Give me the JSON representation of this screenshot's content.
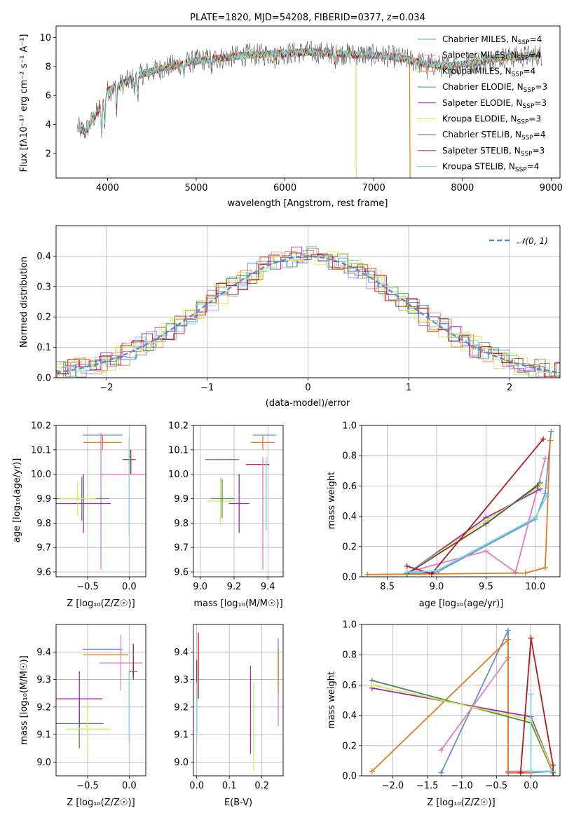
{
  "chart_data": [
    {
      "id": "p1",
      "type": "line",
      "title": "PLATE=1820, MJD=54208, FIBERID=0377, z=0.034",
      "xlabel": "wavelength [Angstrom, rest frame]",
      "ylabel": "Flux [fλ10⁻¹⁷ erg cm⁻² s⁻¹ A⁻¹]",
      "xlim": [
        3420,
        9100
      ],
      "ylim": [
        0.3,
        10.8
      ],
      "xticks": [
        4000,
        5000,
        6000,
        7000,
        8000,
        9000
      ],
      "yticks": [
        2,
        4,
        6,
        8,
        10
      ],
      "grid": false,
      "legend_position": "top-right",
      "series": [
        {
          "name": "Chabrier MILES, N_SSP=4",
          "color": "#6a8ad8"
        },
        {
          "name": "Salpeter MILES, N_SSP=4",
          "color": "#e27cc0"
        },
        {
          "name": "Kroupa MILES, N_SSP=4",
          "color": "#e07d1e"
        },
        {
          "name": "Chabrier ELODIE, N_SSP=3",
          "color": "#4a8a5a"
        },
        {
          "name": "Salpeter ELODIE, N_SSP=3",
          "color": "#9a2aa8"
        },
        {
          "name": "Kroupa ELODIE, N_SSP=3",
          "color": "#d7e85a"
        },
        {
          "name": "Chabrier STELIB, N_SSP=4",
          "color": "#555555"
        },
        {
          "name": "Salpeter STELIB, N_SSP=3",
          "color": "#b01a1a"
        },
        {
          "name": "Kroupa STELIB, N_SSP=4",
          "color": "#72d8d8"
        }
      ],
      "spectrum_envelope": {
        "x": [
          3650,
          3750,
          3900,
          4000,
          4200,
          4400,
          4700,
          5000,
          5300,
          5600,
          6000,
          6300,
          6600,
          6900,
          7200,
          7500,
          7800,
          8100,
          8400,
          8700,
          8900
        ],
        "y": [
          3.8,
          3.5,
          5.0,
          6.3,
          6.9,
          7.5,
          8.0,
          8.4,
          8.6,
          8.8,
          8.9,
          9.0,
          8.9,
          8.8,
          8.7,
          8.3,
          8.0,
          8.2,
          8.6,
          8.7,
          8.8
        ]
      }
    },
    {
      "id": "p2",
      "type": "histogram",
      "xlabel": "(data-model)/error",
      "ylabel": "Normed distribution",
      "xlim": [
        -2.5,
        2.5
      ],
      "ylim": [
        0,
        0.5
      ],
      "xticks": [
        -2,
        -1,
        0,
        1,
        2
      ],
      "yticks": [
        0.0,
        0.1,
        0.2,
        0.3,
        0.4
      ],
      "grid": true,
      "legend": [
        {
          "name": "𝒩(0, 1)",
          "style": "dashed",
          "color": "#5b8ad8"
        }
      ],
      "legend_position": "top-right"
    },
    {
      "id": "p3",
      "type": "errorbar",
      "xlabel": "Z [log₁₀(Z/Z☉)]",
      "ylabel": "age  [log₁₀(age/yr)]",
      "xlim": [
        -0.88,
        0.2
      ],
      "ylim": [
        9.58,
        10.2
      ],
      "xticks": [
        -0.5,
        0.0
      ],
      "yticks": [
        9.6,
        9.7,
        9.8,
        9.9,
        10.0,
        10.1,
        10.2
      ],
      "points": [
        {
          "color": "#6a8ad8",
          "x": -0.32,
          "xerr": 0.24,
          "y": 10.16,
          "yerr": 0.0
        },
        {
          "color": "#e07d1e",
          "x": -0.32,
          "xerr": 0.23,
          "y": 10.13,
          "yerr": 0.03
        },
        {
          "color": "#e27cc0",
          "x": -0.34,
          "xerr": 0.0,
          "y": 9.89,
          "yerr": 0.28
        },
        {
          "color": "#4a8a5a",
          "x": -0.57,
          "xerr": 0.33,
          "y": 9.9,
          "yerr": 0.09
        },
        {
          "color": "#9a2aa8",
          "x": -0.55,
          "xerr": 0.33,
          "y": 9.88,
          "yerr": 0.12
        },
        {
          "color": "#d7e85a",
          "x": -0.62,
          "xerr": 0.22,
          "y": 9.9,
          "yerr": 0.07
        },
        {
          "color": "#e27cc0",
          "x": 0.0,
          "xerr": 0.35,
          "y": 10.0,
          "yerr": 0.0
        },
        {
          "color": "#b01a1a",
          "x": 0.02,
          "xerr": 0.0,
          "y": 10.05,
          "yerr": 0.05
        },
        {
          "color": "#555555",
          "x": 0.0,
          "xerr": 0.08,
          "y": 10.06,
          "yerr": 0.02
        },
        {
          "color": "#72d8d8",
          "x": 0.0,
          "xerr": 0.0,
          "y": 9.95,
          "yerr": 0.2
        }
      ]
    },
    {
      "id": "p4",
      "type": "errorbar",
      "xlabel": "mass [log₁₀(M/M☉)]",
      "ylabel": "",
      "xlim": [
        8.96,
        9.49
      ],
      "ylim": [
        9.58,
        10.2
      ],
      "xticks": [
        9.0,
        9.2,
        9.4
      ],
      "yticks": [
        9.6,
        9.7,
        9.8,
        9.9,
        10.0,
        10.1,
        10.2
      ],
      "points": [
        {
          "color": "#6a8ad8",
          "x": 9.38,
          "xerr": 0.07,
          "y": 10.16,
          "yerr": 0.0
        },
        {
          "color": "#e07d1e",
          "x": 9.37,
          "xerr": 0.07,
          "y": 10.13,
          "yerr": 0.03
        },
        {
          "color": "#4a8a5a",
          "x": 9.13,
          "xerr": 0.1,
          "y": 10.06,
          "yerr": 0.0
        },
        {
          "color": "#b01a1a",
          "x": 9.34,
          "xerr": 0.07,
          "y": 10.04,
          "yerr": 0.0
        },
        {
          "color": "#e27cc0",
          "x": 9.37,
          "xerr": 0.0,
          "y": 9.84,
          "yerr": 0.23
        },
        {
          "color": "#9a2aa8",
          "x": 9.23,
          "xerr": 0.06,
          "y": 9.88,
          "yerr": 0.12
        },
        {
          "color": "#d7e85a",
          "x": 9.12,
          "xerr": 0.08,
          "y": 9.89,
          "yerr": 0.1
        },
        {
          "color": "#4a8a5a",
          "x": 9.13,
          "xerr": 0.07,
          "y": 9.9,
          "yerr": 0.08
        },
        {
          "color": "#72d8d8",
          "x": 9.39,
          "xerr": 0.0,
          "y": 9.92,
          "yerr": 0.15
        }
      ]
    },
    {
      "id": "p5",
      "type": "line",
      "xlabel": "age  [log₁₀(age/yr)]",
      "ylabel": "mass weight",
      "xlim": [
        8.24,
        10.25
      ],
      "ylim": [
        0,
        1
      ],
      "xticks": [
        8.5,
        9.0,
        9.5,
        10.0
      ],
      "yticks": [
        0.0,
        0.2,
        0.4,
        0.6,
        0.8,
        1.0
      ],
      "grid": true,
      "series": [
        {
          "color": "#6a8ad8",
          "x": [
            8.7,
            9.0,
            10.0,
            10.1,
            10.16
          ],
          "y": [
            0.02,
            0.03,
            0.38,
            0.55,
            0.96
          ]
        },
        {
          "color": "#e27cc0",
          "x": [
            8.7,
            9.5,
            9.8,
            10.1
          ],
          "y": [
            0.03,
            0.17,
            0.03,
            0.78
          ]
        },
        {
          "color": "#e07d1e",
          "x": [
            8.3,
            9.9,
            10.1,
            10.15
          ],
          "y": [
            0.015,
            0.025,
            0.06,
            0.9
          ]
        },
        {
          "color": "#4a8a5a",
          "x": [
            8.7,
            9.5,
            10.05
          ],
          "y": [
            0.02,
            0.35,
            0.62
          ]
        },
        {
          "color": "#9a2aa8",
          "x": [
            8.7,
            9.5,
            10.05
          ],
          "y": [
            0.02,
            0.39,
            0.58
          ]
        },
        {
          "color": "#d7e85a",
          "x": [
            8.7,
            9.5,
            10.05
          ],
          "y": [
            0.02,
            0.37,
            0.6
          ]
        },
        {
          "color": "#555555",
          "x": [
            8.7,
            9.5,
            10.02
          ],
          "y": [
            0.02,
            0.35,
            0.6
          ]
        },
        {
          "color": "#b01a1a",
          "x": [
            8.7,
            8.95,
            10.08
          ],
          "y": [
            0.07,
            0.02,
            0.91
          ]
        },
        {
          "color": "#72d8d8",
          "x": [
            8.7,
            9.0,
            10.0,
            10.12
          ],
          "y": [
            0.03,
            0.04,
            0.39,
            0.54
          ]
        }
      ]
    },
    {
      "id": "p6",
      "type": "errorbar",
      "xlabel": "Z [log₁₀(Z/Z☉)]",
      "ylabel": "mass [log₁₀(M/M☉)]",
      "xlim": [
        -0.88,
        0.2
      ],
      "ylim": [
        8.95,
        9.5
      ],
      "xticks": [
        -0.5,
        0.0
      ],
      "yticks": [
        9.0,
        9.1,
        9.2,
        9.3,
        9.4
      ],
      "points": [
        {
          "color": "#6a8ad8",
          "x": -0.32,
          "xerr": 0.24,
          "y": 9.41,
          "yerr": 0.0
        },
        {
          "color": "#e07d1e",
          "x": -0.28,
          "xerr": 0.27,
          "y": 9.39,
          "yerr": 0.0
        },
        {
          "color": "#e27cc0",
          "x": -0.1,
          "xerr": 0.26,
          "y": 9.36,
          "yerr": 0.1
        },
        {
          "color": "#4a8a5a",
          "x": -0.6,
          "xerr": 0.29,
          "y": 9.14,
          "yerr": 0.09
        },
        {
          "color": "#9a2aa8",
          "x": -0.6,
          "xerr": 0.28,
          "y": 9.23,
          "yerr": 0.1
        },
        {
          "color": "#d7e85a",
          "x": -0.5,
          "xerr": 0.27,
          "y": 9.12,
          "yerr": 0.09
        },
        {
          "color": "#555555",
          "x": 0.05,
          "xerr": 0.05,
          "y": 9.33,
          "yerr": 0.03
        },
        {
          "color": "#b01a1a",
          "x": 0.05,
          "xerr": 0.0,
          "y": 9.37,
          "yerr": 0.06
        },
        {
          "color": "#72d8d8",
          "x": 0.0,
          "xerr": 0.0,
          "y": 9.2,
          "yerr": 0.13
        }
      ]
    },
    {
      "id": "p7",
      "type": "errorbar",
      "xlabel": "E(B-V)",
      "ylabel": "",
      "xlim": [
        -0.01,
        0.265
      ],
      "ylim": [
        8.95,
        9.5
      ],
      "xticks": [
        0.0,
        0.1,
        0.2
      ],
      "yticks": [
        9.0,
        9.1,
        9.2,
        9.3,
        9.4
      ],
      "points": [
        {
          "color": "#555555",
          "x": 0.0,
          "xerr": 0.0,
          "y": 9.24,
          "yerr": 0.13
        },
        {
          "color": "#b01a1a",
          "x": 0.005,
          "xerr": 0.0,
          "y": 9.35,
          "yerr": 0.12
        },
        {
          "color": "#72d8d8",
          "x": 0.0,
          "xerr": 0.0,
          "y": 9.18,
          "yerr": 0.11
        },
        {
          "color": "#9a2aa8",
          "x": 0.165,
          "xerr": 0.0,
          "y": 9.19,
          "yerr": 0.16
        },
        {
          "color": "#d7e85a",
          "x": 0.175,
          "xerr": 0.0,
          "y": 9.13,
          "yerr": 0.16
        },
        {
          "color": "#e27cc0",
          "x": 0.25,
          "xerr": 0.0,
          "y": 9.27,
          "yerr": 0.14
        },
        {
          "color": "#6a8ad8",
          "x": 0.25,
          "xerr": 0.0,
          "y": 9.38,
          "yerr": 0.07
        },
        {
          "color": "#e07d1e",
          "x": 0.25,
          "xerr": 0.0,
          "y": 9.33,
          "yerr": 0.08
        }
      ]
    },
    {
      "id": "p8",
      "type": "line",
      "xlabel": "Z [log₁₀(Z/Z☉)]",
      "ylabel": "mass weight",
      "xlim": [
        -2.45,
        0.42
      ],
      "ylim": [
        0,
        1
      ],
      "xticks": [
        -2.0,
        -1.5,
        -1.0,
        -0.5,
        0.0
      ],
      "yticks": [
        0.0,
        0.2,
        0.4,
        0.6,
        0.8,
        1.0
      ],
      "grid": true,
      "series": [
        {
          "color": "#6a8ad8",
          "x": [
            -1.3,
            -0.33,
            -0.33,
            0.0,
            0.32
          ],
          "y": [
            0.02,
            0.96,
            0.02,
            0.02,
            0.03
          ]
        },
        {
          "color": "#e27cc0",
          "x": [
            -1.3,
            -0.33,
            -0.33,
            0.0
          ],
          "y": [
            0.17,
            0.78,
            0.03,
            0.03
          ]
        },
        {
          "color": "#e07d1e",
          "x": [
            -2.3,
            -0.33,
            -0.33,
            0.0
          ],
          "y": [
            0.03,
            0.9,
            0.02,
            0.02
          ]
        },
        {
          "color": "#4a8a5a",
          "x": [
            -2.3,
            0.0,
            0.32
          ],
          "y": [
            0.63,
            0.35,
            0.02
          ]
        },
        {
          "color": "#9a2aa8",
          "x": [
            -2.3,
            0.0,
            0.32
          ],
          "y": [
            0.58,
            0.39,
            0.03
          ]
        },
        {
          "color": "#d7e85a",
          "x": [
            -2.3,
            0.0,
            0.32
          ],
          "y": [
            0.6,
            0.37,
            0.03
          ]
        },
        {
          "color": "#b01a1a",
          "x": [
            -0.15,
            0.0,
            0.32,
            0.32
          ],
          "y": [
            0.02,
            0.91,
            0.07,
            0.0
          ]
        },
        {
          "color": "#72d8d8",
          "x": [
            0.0,
            0.0,
            0.3
          ],
          "y": [
            0.54,
            0.03,
            0.03
          ]
        }
      ]
    }
  ],
  "histogram_colors": [
    "#6a8ad8",
    "#e27cc0",
    "#e07d1e",
    "#4a8a5a",
    "#9a2aa8",
    "#d7e85a",
    "#72d8d8",
    "#b01a1a",
    "#d7e85a"
  ]
}
